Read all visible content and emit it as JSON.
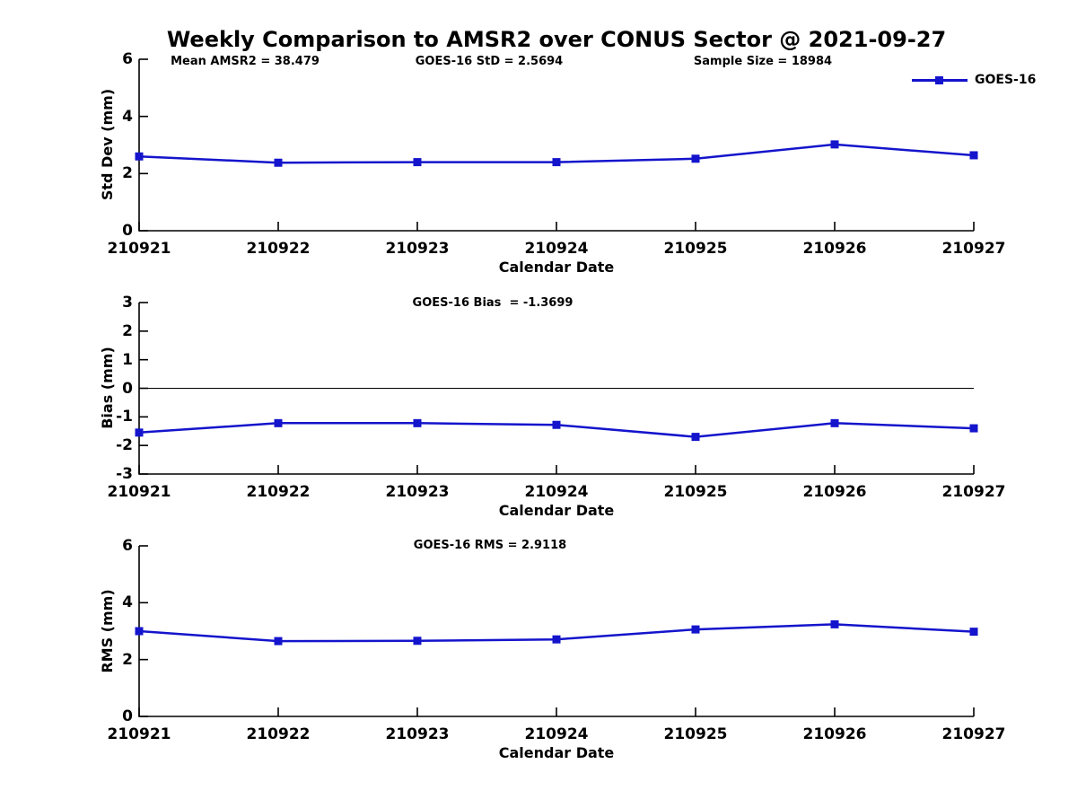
{
  "page_title": "Weekly Comparison to AMSR2 over CONUS Sector @ 2021-09-27",
  "colors": {
    "line": "#1414cc",
    "axis": "#000000",
    "zero_line": "#000000",
    "background": "#ffffff"
  },
  "legend": {
    "label": "GOES-16",
    "position": "top-right"
  },
  "chart_data": [
    {
      "type": "line",
      "x": [
        "210921",
        "210922",
        "210923",
        "210924",
        "210925",
        "210926",
        "210927"
      ],
      "series": [
        {
          "name": "GOES-16",
          "values": [
            2.6,
            2.38,
            2.4,
            2.4,
            2.52,
            3.02,
            2.64
          ]
        }
      ],
      "annotations": [
        "Mean AMSR2 = 38.479",
        "GOES-16 StD = 2.5694",
        "Sample Size = 18984"
      ],
      "xlabel": "Calendar Date",
      "ylabel": "Std Dev (mm)",
      "ylim": [
        0,
        6
      ],
      "yticks": [
        0,
        2,
        4,
        6
      ],
      "grid": false,
      "zero_line": false,
      "legend_position": "top-right"
    },
    {
      "type": "line",
      "x": [
        "210921",
        "210922",
        "210923",
        "210924",
        "210925",
        "210926",
        "210927"
      ],
      "series": [
        {
          "name": "GOES-16",
          "values": [
            -1.55,
            -1.22,
            -1.22,
            -1.28,
            -1.7,
            -1.22,
            -1.4
          ]
        }
      ],
      "annotations": [
        "GOES-16 Bias  = -1.3699"
      ],
      "xlabel": "Calendar Date",
      "ylabel": "Bias (mm)",
      "ylim": [
        -3,
        3
      ],
      "yticks": [
        3,
        2,
        1,
        0,
        -1,
        -2,
        -3
      ],
      "grid": false,
      "zero_line": true,
      "legend_position": "none"
    },
    {
      "type": "line",
      "x": [
        "210921",
        "210922",
        "210923",
        "210924",
        "210925",
        "210926",
        "210927"
      ],
      "series": [
        {
          "name": "GOES-16",
          "values": [
            3.0,
            2.65,
            2.66,
            2.71,
            3.06,
            3.24,
            2.98
          ]
        }
      ],
      "annotations": [
        "GOES-16 RMS = 2.9118"
      ],
      "xlabel": "Calendar Date",
      "ylabel": "RMS (mm)",
      "ylim": [
        0,
        6
      ],
      "yticks": [
        0,
        2,
        4,
        6
      ],
      "grid": false,
      "zero_line": false,
      "legend_position": "none"
    }
  ]
}
